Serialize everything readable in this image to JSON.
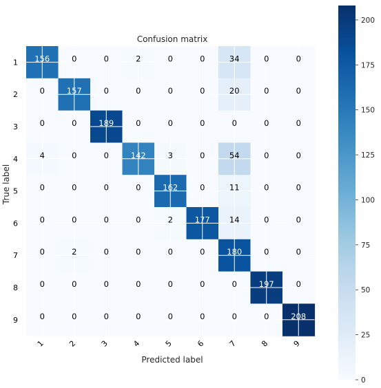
{
  "chart_data": {
    "type": "heatmap",
    "title": "Confusion matrix",
    "xlabel": "Predicted label",
    "ylabel": "True label",
    "x_categories": [
      "1",
      "2",
      "3",
      "4",
      "5",
      "6",
      "7",
      "8",
      "9"
    ],
    "y_categories": [
      "1",
      "2",
      "3",
      "4",
      "5",
      "6",
      "7",
      "8",
      "9"
    ],
    "values": [
      [
        156,
        0,
        0,
        2,
        0,
        0,
        34,
        0,
        0
      ],
      [
        0,
        157,
        0,
        0,
        0,
        0,
        20,
        0,
        0
      ],
      [
        0,
        0,
        189,
        0,
        0,
        0,
        0,
        0,
        0
      ],
      [
        4,
        0,
        0,
        142,
        3,
        0,
        54,
        0,
        0
      ],
      [
        0,
        0,
        0,
        0,
        162,
        0,
        11,
        0,
        0
      ],
      [
        0,
        0,
        0,
        0,
        2,
        177,
        14,
        0,
        0
      ],
      [
        0,
        2,
        0,
        0,
        0,
        0,
        180,
        0,
        0
      ],
      [
        0,
        0,
        0,
        0,
        0,
        0,
        0,
        197,
        0
      ],
      [
        0,
        0,
        0,
        0,
        0,
        0,
        0,
        0,
        208
      ]
    ],
    "colormap": "Blues",
    "colorbar": {
      "range": [
        0,
        208
      ],
      "ticks": [
        0,
        25,
        50,
        75,
        100,
        125,
        150,
        175,
        200
      ]
    },
    "grid": true,
    "annotations": "cell values shown in each cell"
  }
}
